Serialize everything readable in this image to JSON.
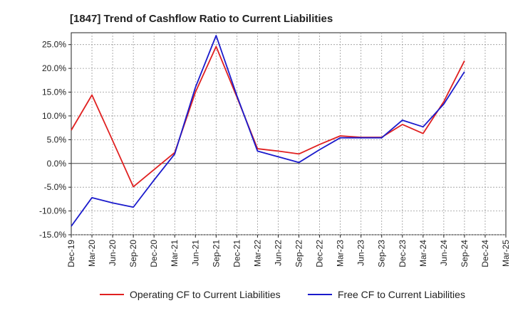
{
  "chart_data": {
    "type": "line",
    "title": "[1847]  Trend of Cashflow Ratio to Current Liabilities",
    "xlabel": "",
    "ylabel": "",
    "categories": [
      "Dec-19",
      "Mar-20",
      "Jun-20",
      "Sep-20",
      "Dec-20",
      "Mar-21",
      "Jun-21",
      "Sep-21",
      "Dec-21",
      "Mar-22",
      "Jun-22",
      "Sep-22",
      "Dec-22",
      "Mar-23",
      "Jun-23",
      "Sep-23",
      "Dec-23",
      "Mar-24",
      "Jun-24",
      "Sep-24",
      "Dec-24",
      "Mar-25"
    ],
    "ylim": [
      -15,
      27.5
    ],
    "yticks": [
      -15,
      -10,
      -5,
      0,
      5,
      10,
      15,
      20,
      25
    ],
    "ytick_labels": [
      "-15.0%",
      "-10.0%",
      "-5.0%",
      "0.0%",
      "5.0%",
      "10.0%",
      "15.0%",
      "20.0%",
      "25.0%"
    ],
    "grid": true,
    "legend_position": "bottom",
    "series": [
      {
        "name": "Operating CF to Current Liabilities",
        "color": "#e02020",
        "values": [
          7.0,
          14.4,
          4.8,
          -4.9,
          -1.3,
          2.3,
          15.0,
          24.6,
          14.0,
          3.1,
          2.6,
          2.0,
          4.0,
          5.8,
          5.5,
          5.5,
          8.2,
          6.3,
          13.0,
          21.6,
          null,
          null
        ]
      },
      {
        "name": "Free CF to Current Liabilities",
        "color": "#1a1acc",
        "values": [
          -13.2,
          -7.2,
          -8.3,
          -9.2,
          -3.5,
          2.0,
          16.0,
          26.9,
          14.3,
          2.6,
          1.4,
          0.2,
          2.9,
          5.4,
          5.4,
          5.4,
          9.1,
          7.7,
          12.5,
          19.3,
          null,
          null
        ]
      }
    ]
  }
}
